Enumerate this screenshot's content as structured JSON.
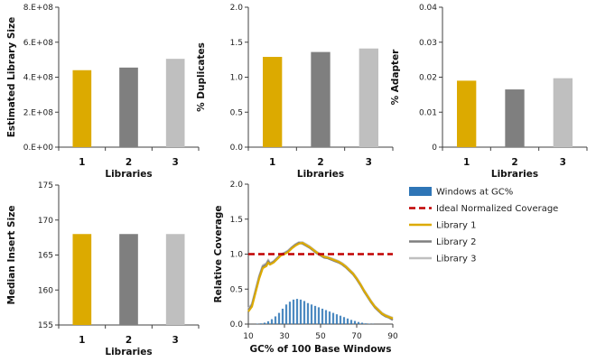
{
  "chart_data": [
    {
      "id": "library_size",
      "type": "bar",
      "categories": [
        "1",
        "2",
        "3"
      ],
      "values": [
        440000000,
        455000000,
        505000000
      ],
      "colors": [
        "#dcaa00",
        "#7f7f7f",
        "#bfbfbf"
      ],
      "xlabel": "Libraries",
      "ylabel": "Estimated Library Size",
      "ylim": [
        0,
        800000000
      ],
      "yticks": [
        0,
        200000000,
        400000000,
        600000000,
        800000000
      ],
      "ytick_labels": [
        "0.E+00",
        "2.E+08",
        "4.E+08",
        "6.E+08",
        "8.E+08"
      ]
    },
    {
      "id": "duplicates",
      "type": "bar",
      "categories": [
        "1",
        "2",
        "3"
      ],
      "values": [
        1.29,
        1.36,
        1.41
      ],
      "colors": [
        "#dcaa00",
        "#7f7f7f",
        "#bfbfbf"
      ],
      "xlabel": "Libraries",
      "ylabel": "% Duplicates",
      "ylim": [
        0,
        2.0
      ],
      "yticks": [
        0,
        0.5,
        1.0,
        1.5,
        2.0
      ],
      "ytick_labels": [
        "0.0",
        "0.5",
        "1.0",
        "1.5",
        "2.0"
      ]
    },
    {
      "id": "adapter",
      "type": "bar",
      "categories": [
        "1",
        "2",
        "3"
      ],
      "values": [
        0.019,
        0.0165,
        0.0197
      ],
      "colors": [
        "#dcaa00",
        "#7f7f7f",
        "#bfbfbf"
      ],
      "xlabel": "Libraries",
      "ylabel": "% Adapter",
      "ylim": [
        0,
        0.04
      ],
      "yticks": [
        0,
        0.01,
        0.02,
        0.03,
        0.04
      ],
      "ytick_labels": [
        "0",
        "0.01",
        "0.02",
        "0.03",
        "0.04"
      ]
    },
    {
      "id": "insert_size",
      "type": "bar",
      "categories": [
        "1",
        "2",
        "3"
      ],
      "values": [
        168,
        168,
        168
      ],
      "colors": [
        "#dcaa00",
        "#7f7f7f",
        "#bfbfbf"
      ],
      "xlabel": "Libraries",
      "ylabel": "Median Insert Size",
      "ylim": [
        155,
        175
      ],
      "yticks": [
        155,
        160,
        165,
        170,
        175
      ],
      "ytick_labels": [
        "155",
        "160",
        "165",
        "170",
        "175"
      ]
    },
    {
      "id": "gc_coverage",
      "type": "line",
      "xlabel": "GC% of 100 Base Windows",
      "ylabel": "Relative Coverage",
      "xlim": [
        10,
        90
      ],
      "ylim": [
        0,
        2.0
      ],
      "xticks": [
        10,
        30,
        50,
        70,
        90
      ],
      "yticks": [
        0,
        0.5,
        1.0,
        1.5,
        2.0
      ],
      "ytick_labels": [
        "0.0",
        "0.5",
        "1.0",
        "1.5",
        "2.0"
      ],
      "legend": [
        "Windows at GC%",
        "Ideal Normalized Coverage",
        "Library 1",
        "Library 2",
        "Library 3"
      ],
      "legend_colors": [
        "#2e75b6",
        "#c00000",
        "#dcaa00",
        "#7f7f7f",
        "#bfbfbf"
      ],
      "legend_position": "right",
      "ideal": 1.0,
      "histogram": {
        "x": [
          15,
          17,
          19,
          21,
          23,
          25,
          27,
          29,
          31,
          33,
          35,
          37,
          39,
          41,
          43,
          45,
          47,
          49,
          51,
          53,
          55,
          57,
          59,
          61,
          63,
          65,
          67,
          69,
          71,
          73,
          75,
          77,
          79
        ],
        "values": [
          0.005,
          0.01,
          0.02,
          0.04,
          0.07,
          0.11,
          0.16,
          0.22,
          0.28,
          0.32,
          0.35,
          0.36,
          0.35,
          0.33,
          0.3,
          0.28,
          0.26,
          0.24,
          0.22,
          0.2,
          0.18,
          0.16,
          0.14,
          0.12,
          0.1,
          0.08,
          0.06,
          0.045,
          0.03,
          0.02,
          0.01,
          0.006,
          0.003
        ]
      },
      "series": [
        {
          "name": "Library 1",
          "x": [
            10,
            12,
            14,
            16,
            18,
            20,
            21,
            22,
            24,
            26,
            28,
            30,
            32,
            34,
            36,
            38,
            40,
            42,
            44,
            46,
            48,
            50,
            52,
            54,
            56,
            58,
            60,
            62,
            64,
            66,
            68,
            70,
            72,
            74,
            76,
            78,
            80,
            82,
            84,
            86,
            88,
            90
          ],
          "y": [
            0.18,
            0.25,
            0.45,
            0.65,
            0.8,
            0.83,
            0.88,
            0.85,
            0.88,
            0.93,
            0.98,
            1.0,
            1.03,
            1.08,
            1.12,
            1.15,
            1.16,
            1.13,
            1.1,
            1.06,
            1.02,
            0.99,
            0.96,
            0.95,
            0.93,
            0.91,
            0.89,
            0.86,
            0.82,
            0.77,
            0.72,
            0.65,
            0.57,
            0.48,
            0.4,
            0.32,
            0.25,
            0.2,
            0.15,
            0.12,
            0.1,
            0.08
          ]
        },
        {
          "name": "Library 2",
          "x": [
            10,
            12,
            14,
            16,
            18,
            20,
            21,
            22,
            24,
            26,
            28,
            30,
            32,
            34,
            36,
            38,
            40,
            42,
            44,
            46,
            48,
            50,
            52,
            54,
            56,
            58,
            60,
            62,
            64,
            66,
            68,
            70,
            72,
            74,
            76,
            78,
            80,
            82,
            84,
            86,
            88,
            90
          ],
          "y": [
            0.2,
            0.27,
            0.47,
            0.67,
            0.82,
            0.85,
            0.9,
            0.86,
            0.89,
            0.94,
            0.99,
            1.01,
            1.04,
            1.09,
            1.13,
            1.16,
            1.15,
            1.12,
            1.09,
            1.05,
            1.01,
            0.98,
            0.95,
            0.94,
            0.92,
            0.9,
            0.88,
            0.85,
            0.81,
            0.76,
            0.71,
            0.64,
            0.56,
            0.47,
            0.39,
            0.31,
            0.24,
            0.19,
            0.14,
            0.11,
            0.09,
            0.06
          ]
        },
        {
          "name": "Library 3",
          "x": [
            10,
            12,
            14,
            16,
            18,
            20,
            21,
            22,
            24,
            26,
            28,
            30,
            32,
            34,
            36,
            38,
            40,
            42,
            44,
            46,
            48,
            50,
            52,
            54,
            56,
            58,
            60,
            62,
            64,
            66,
            68,
            70,
            72,
            74,
            76,
            78,
            80,
            82,
            84,
            86,
            88,
            90
          ],
          "y": [
            0.22,
            0.29,
            0.49,
            0.69,
            0.84,
            0.87,
            0.92,
            0.87,
            0.9,
            0.95,
            1.0,
            1.02,
            1.05,
            1.1,
            1.14,
            1.17,
            1.17,
            1.14,
            1.11,
            1.07,
            1.03,
            1.0,
            0.97,
            0.96,
            0.94,
            0.92,
            0.9,
            0.87,
            0.83,
            0.78,
            0.73,
            0.66,
            0.58,
            0.49,
            0.41,
            0.33,
            0.26,
            0.21,
            0.16,
            0.13,
            0.11,
            0.09
          ]
        }
      ]
    }
  ]
}
